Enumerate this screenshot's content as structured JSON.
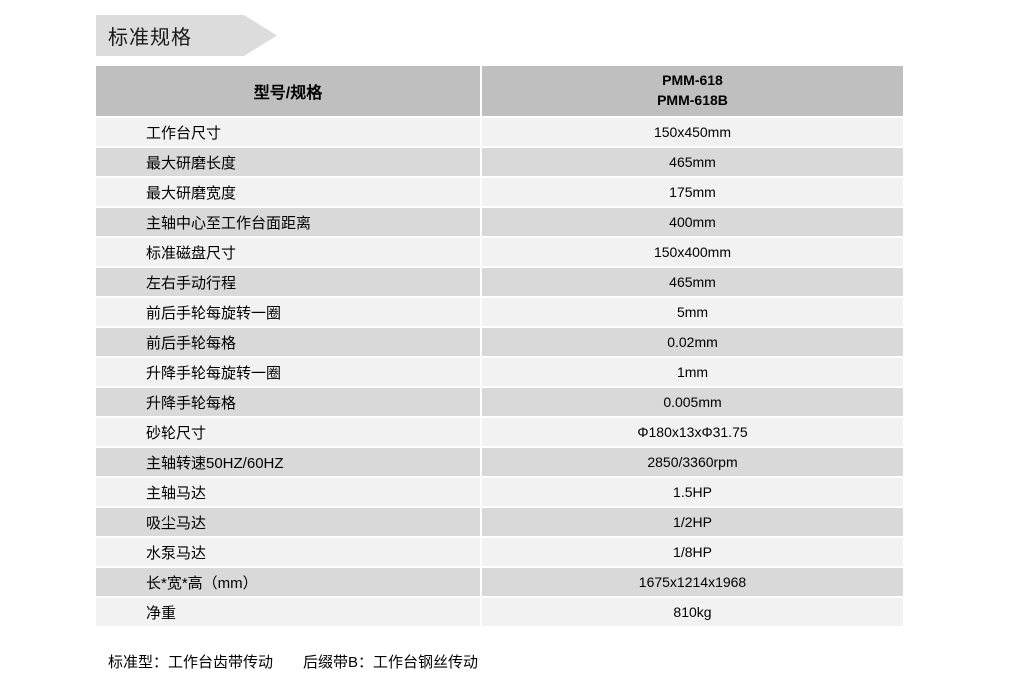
{
  "banner": {
    "title": "标准规格"
  },
  "table": {
    "header": {
      "left": "型号/规格",
      "model_line1": "PMM-618",
      "model_line2": "PMM-618B"
    },
    "rows": [
      {
        "label": "工作台尺寸",
        "value": "150x450mm"
      },
      {
        "label": "最大研磨长度",
        "value": "465mm"
      },
      {
        "label": "最大研磨宽度",
        "value": "175mm"
      },
      {
        "label": "主轴中心至工作台面距离",
        "value": "400mm"
      },
      {
        "label": "标准磁盘尺寸",
        "value": "150x400mm"
      },
      {
        "label": "左右手动行程",
        "value": "465mm"
      },
      {
        "label": "前后手轮每旋转一圈",
        "value": "5mm"
      },
      {
        "label": "前后手轮每格",
        "value": "0.02mm"
      },
      {
        "label": "升降手轮每旋转一圈",
        "value": "1mm"
      },
      {
        "label": "升降手轮每格",
        "value": "0.005mm"
      },
      {
        "label": "砂轮尺寸",
        "value": "Φ180x13xΦ31.75"
      },
      {
        "label": "主轴转速50HZ/60HZ",
        "value": "2850/3360rpm"
      },
      {
        "label": "主轴马达",
        "value": "1.5HP"
      },
      {
        "label": "吸尘马达",
        "value": "1/2HP"
      },
      {
        "label": "水泵马达",
        "value": "1/8HP"
      },
      {
        "label": "长*宽*高（mm）",
        "value": "1675x1214x1968"
      },
      {
        "label": "净重",
        "value": "810kg"
      }
    ]
  },
  "footer": {
    "note1": "标准型：工作台齿带传动",
    "note2": "后缀带B：工作台钢丝传动"
  },
  "colors": {
    "banner_bg": "#dcdcdc",
    "header_bg": "#bfbfbf",
    "row_odd_bg": "#f2f2f2",
    "row_even_bg": "#d9d9d9"
  }
}
